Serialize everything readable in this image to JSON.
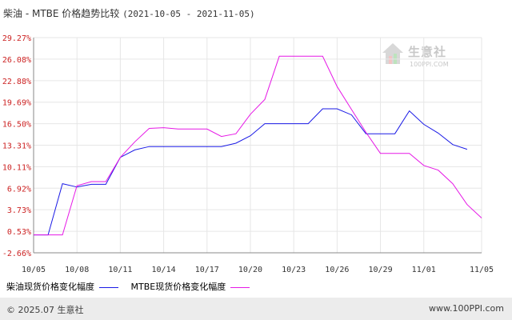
{
  "title": {
    "main": "柴油 - MTBE 价格趋势比较",
    "range": "(2021-10-05 - 2021-11-05)"
  },
  "watermark": {
    "name": "生意社",
    "url": "100PPI.COM"
  },
  "footer": {
    "copyright": "© 2025.07 生意社",
    "site": "www.100PPI.com"
  },
  "colors": {
    "diesel": "#1a1ae6",
    "mtbe": "#e619e6",
    "grid": "#e6e6e6",
    "axis_text": "#cc2222"
  },
  "chart_data": {
    "type": "line",
    "x_ticks": [
      "10/05",
      "10/08",
      "10/11",
      "10/14",
      "10/17",
      "10/20",
      "10/23",
      "10/26",
      "10/29",
      "11/01",
      "11/05"
    ],
    "y_ticks": [
      "29.27%",
      "26.08%",
      "22.88%",
      "19.69%",
      "16.50%",
      "13.31%",
      "10.11%",
      "6.92%",
      "3.73%",
      "0.53%",
      "-2.66%"
    ],
    "ylim": [
      -2.66,
      29.27
    ],
    "series": [
      {
        "name": "柴油现货价格变化幅度",
        "color": "#1a1ae6",
        "points": [
          [
            "10/05",
            0.0
          ],
          [
            "10/06",
            0.0
          ],
          [
            "10/07",
            7.6
          ],
          [
            "10/08",
            7.1
          ],
          [
            "10/09",
            7.5
          ],
          [
            "10/10",
            7.5
          ],
          [
            "10/11",
            11.5
          ],
          [
            "10/12",
            12.6
          ],
          [
            "10/13",
            13.1
          ],
          [
            "10/14",
            13.1
          ],
          [
            "10/15",
            13.1
          ],
          [
            "10/16",
            13.1
          ],
          [
            "10/17",
            13.1
          ],
          [
            "10/18",
            13.1
          ],
          [
            "10/19",
            13.6
          ],
          [
            "10/20",
            14.7
          ],
          [
            "10/21",
            16.5
          ],
          [
            "10/22",
            16.5
          ],
          [
            "10/23",
            16.5
          ],
          [
            "10/24",
            16.5
          ],
          [
            "10/25",
            18.7
          ],
          [
            "10/26",
            18.7
          ],
          [
            "10/27",
            17.8
          ],
          [
            "10/28",
            15.0
          ],
          [
            "10/29",
            15.0
          ],
          [
            "10/30",
            15.0
          ],
          [
            "10/31",
            18.4
          ],
          [
            "11/01",
            16.4
          ],
          [
            "11/02",
            15.1
          ],
          [
            "11/03",
            13.4
          ],
          [
            "11/04",
            12.7
          ]
        ]
      },
      {
        "name": "MTBE现货价格变化幅度",
        "color": "#e619e6",
        "points": [
          [
            "10/05",
            0.0
          ],
          [
            "10/06",
            0.0
          ],
          [
            "10/07",
            0.0
          ],
          [
            "10/08",
            7.3
          ],
          [
            "10/09",
            7.9
          ],
          [
            "10/10",
            7.9
          ],
          [
            "10/11",
            11.5
          ],
          [
            "10/12",
            13.8
          ],
          [
            "10/13",
            15.8
          ],
          [
            "10/14",
            15.9
          ],
          [
            "10/15",
            15.7
          ],
          [
            "10/16",
            15.7
          ],
          [
            "10/17",
            15.7
          ],
          [
            "10/18",
            14.6
          ],
          [
            "10/19",
            15.0
          ],
          [
            "10/20",
            17.9
          ],
          [
            "10/21",
            20.1
          ],
          [
            "10/22",
            26.5
          ],
          [
            "10/23",
            26.5
          ],
          [
            "10/24",
            26.5
          ],
          [
            "10/25",
            26.5
          ],
          [
            "10/26",
            22.0
          ],
          [
            "10/27",
            18.6
          ],
          [
            "10/28",
            15.2
          ],
          [
            "10/29",
            12.1
          ],
          [
            "10/30",
            12.1
          ],
          [
            "10/31",
            12.1
          ],
          [
            "11/01",
            10.3
          ],
          [
            "11/02",
            9.6
          ],
          [
            "11/03",
            7.6
          ],
          [
            "11/04",
            4.5
          ],
          [
            "11/05",
            2.5
          ]
        ]
      }
    ]
  }
}
